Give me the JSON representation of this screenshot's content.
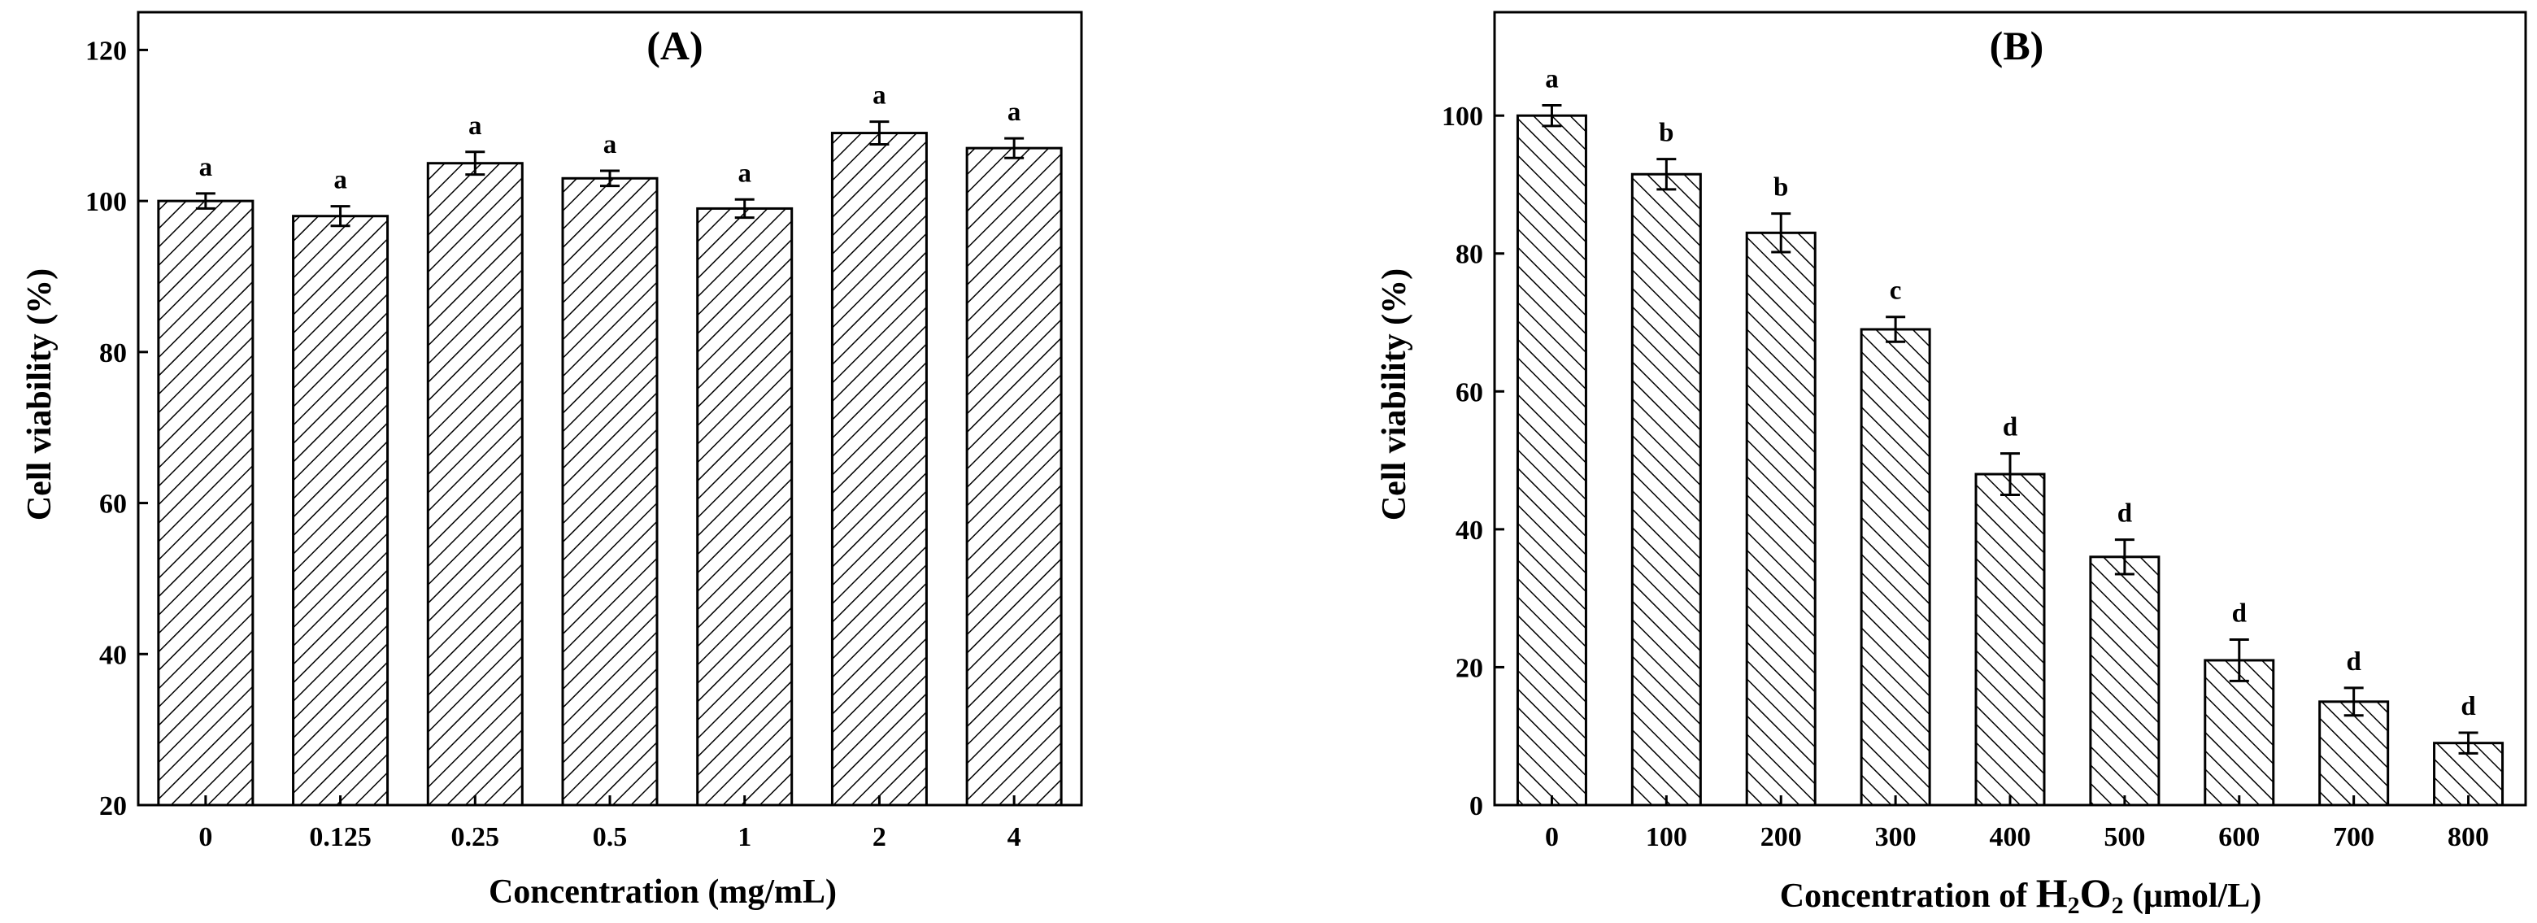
{
  "chart_data": [
    {
      "type": "bar",
      "title": "(A)",
      "xlabel": "Concentration (mg/mL)",
      "ylabel": "Cell viability (%)",
      "ylim": [
        20,
        125
      ],
      "yticks": [
        20,
        40,
        60,
        80,
        100,
        120
      ],
      "categories": [
        "0",
        "0.125",
        "0.25",
        "0.5",
        "1",
        "2",
        "4"
      ],
      "values": [
        100,
        98,
        105,
        103,
        99,
        109,
        107
      ],
      "errors": [
        1,
        1.3,
        1.5,
        1,
        1.2,
        1.5,
        1.3
      ],
      "significance": [
        "a",
        "a",
        "a",
        "a",
        "a",
        "a",
        "a"
      ],
      "hatch": "forward-diagonal",
      "grid": false
    },
    {
      "type": "bar",
      "title": "(B)",
      "xlabel_prefix": "Concentration of ",
      "xlabel_chem": "H",
      "xlabel_sub1": "2",
      "xlabel_chem2": "O",
      "xlabel_sub2": "2",
      "xlabel_suffix": " (μmol/L)",
      "ylabel": "Cell viability (%)",
      "ylim": [
        0,
        115
      ],
      "yticks": [
        0,
        20,
        40,
        60,
        80,
        100
      ],
      "categories": [
        "0",
        "100",
        "200",
        "300",
        "400",
        "500",
        "600",
        "700",
        "800"
      ],
      "values": [
        100,
        91.5,
        83,
        69,
        48,
        36,
        21,
        15,
        9
      ],
      "errors": [
        1.5,
        2.2,
        2.8,
        1.8,
        3,
        2.5,
        3,
        2,
        1.5
      ],
      "significance": [
        "a",
        "b",
        "b",
        "c",
        "d",
        "d",
        "d",
        "d",
        "d"
      ],
      "hatch": "backward-diagonal",
      "grid": false
    }
  ]
}
